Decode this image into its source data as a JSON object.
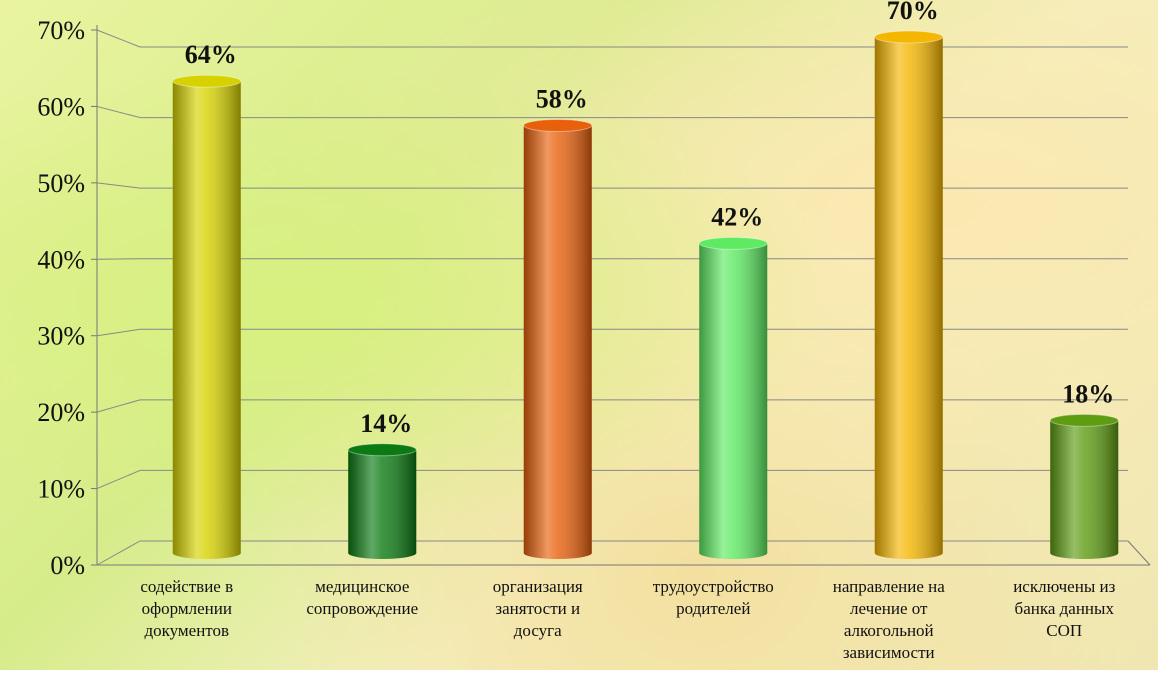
{
  "chart_data": {
    "type": "bar",
    "categories": [
      "содействие в\nоформлении\nдокументов",
      "медицинское\nсопровождение",
      "организация\nзанятости и\nдосуга",
      "трудоустройство\nродителей",
      "направление на\nлечение от\nалкогольной\nзависимости",
      "исключены из\nбанка данных\nСОП"
    ],
    "values": [
      64,
      14,
      58,
      42,
      70,
      18
    ],
    "value_labels": [
      "64%",
      "14%",
      "58%",
      "42%",
      "70%",
      "18%"
    ],
    "colors": [
      "#d6d200",
      "#0b7a12",
      "#e8600c",
      "#5eea62",
      "#f5b600",
      "#5e9c12"
    ],
    "ylim": [
      0,
      70
    ],
    "yticks": [
      {
        "value": 0,
        "label": "0%"
      },
      {
        "value": 10,
        "label": "10%"
      },
      {
        "value": 20,
        "label": "20%"
      },
      {
        "value": 30,
        "label": "30%"
      },
      {
        "value": 40,
        "label": "40%"
      },
      {
        "value": 50,
        "label": "50%"
      },
      {
        "value": 60,
        "label": "60%"
      },
      {
        "value": 70,
        "label": "70%"
      }
    ],
    "grid": true
  }
}
